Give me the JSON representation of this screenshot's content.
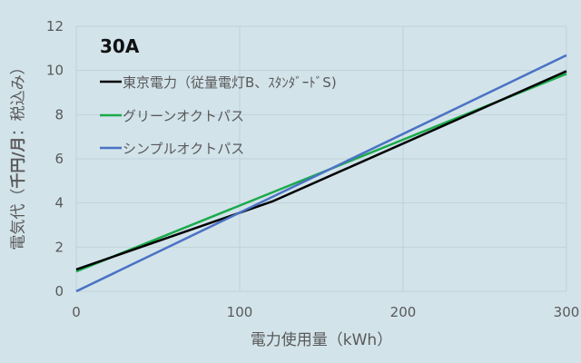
{
  "chart_data": {
    "type": "line",
    "title": "30A",
    "xlabel": "電力使用量（kWh）",
    "ylabel": "電気代（千円/月：税込み）",
    "ylabel_parts": {
      "pre": "電気代（",
      "bold": "千円/月",
      "post": "：税込み）"
    },
    "xlim": [
      0,
      300
    ],
    "ylim": [
      0,
      12
    ],
    "x_ticks": [
      0,
      100,
      200,
      300
    ],
    "y_ticks": [
      0,
      2,
      4,
      6,
      8,
      10,
      12
    ],
    "grid": true,
    "legend_position": "upper-left-inside",
    "series": [
      {
        "name": "東京電力（従量電灯B、ｽﾀﾝﾀﾞｰﾄﾞS)",
        "color": "#000000",
        "x": [
          0,
          120,
          300
        ],
        "y": [
          0.99,
          4.07,
          9.97
        ]
      },
      {
        "name": "グリーンオクトパス",
        "color": "#1aaa4a",
        "x": [
          0,
          300
        ],
        "y": [
          0.9,
          9.85
        ]
      },
      {
        "name": "シンプルオクトパス",
        "color": "#4a72c4",
        "x": [
          0,
          300
        ],
        "y": [
          0.0,
          10.69
        ]
      }
    ]
  },
  "colors": {
    "background": "#d2e3ea",
    "grid": "#c2d2d9",
    "text": "#595959"
  }
}
